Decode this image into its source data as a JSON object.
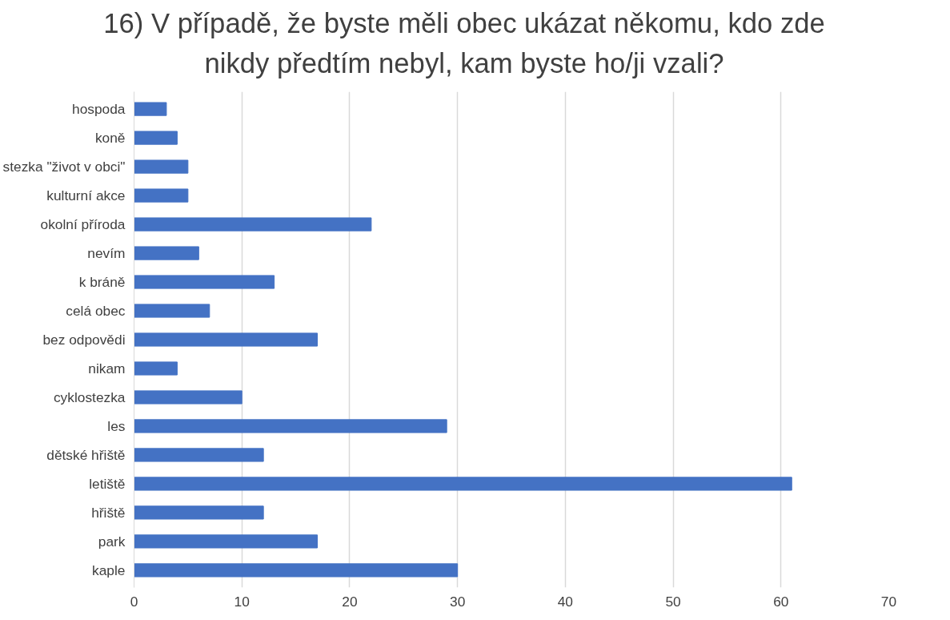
{
  "chart_data": {
    "type": "bar",
    "orientation": "horizontal",
    "title": "16) V případě, že byste měli obec ukázat někomu, kdo zde nikdy předtím nebyl, kam byste ho/ji vzali?",
    "categories": [
      "hospoda",
      "koně",
      "stezka \"život v obci\"",
      "kulturní akce",
      "okolní příroda",
      "nevím",
      "k bráně",
      "celá obec",
      "bez odpovědi",
      "nikam",
      "cyklostezka",
      "les",
      "dětské hřiště",
      "letiště",
      "hřiště",
      "park",
      "kaple"
    ],
    "values": [
      3,
      4,
      5,
      5,
      22,
      6,
      13,
      7,
      17,
      4,
      10,
      29,
      12,
      61,
      12,
      17,
      30
    ],
    "color": "#4472c4",
    "xlim": [
      0,
      70
    ],
    "xticks": [
      0,
      10,
      20,
      30,
      40,
      50,
      60,
      70
    ],
    "grid": "x"
  }
}
